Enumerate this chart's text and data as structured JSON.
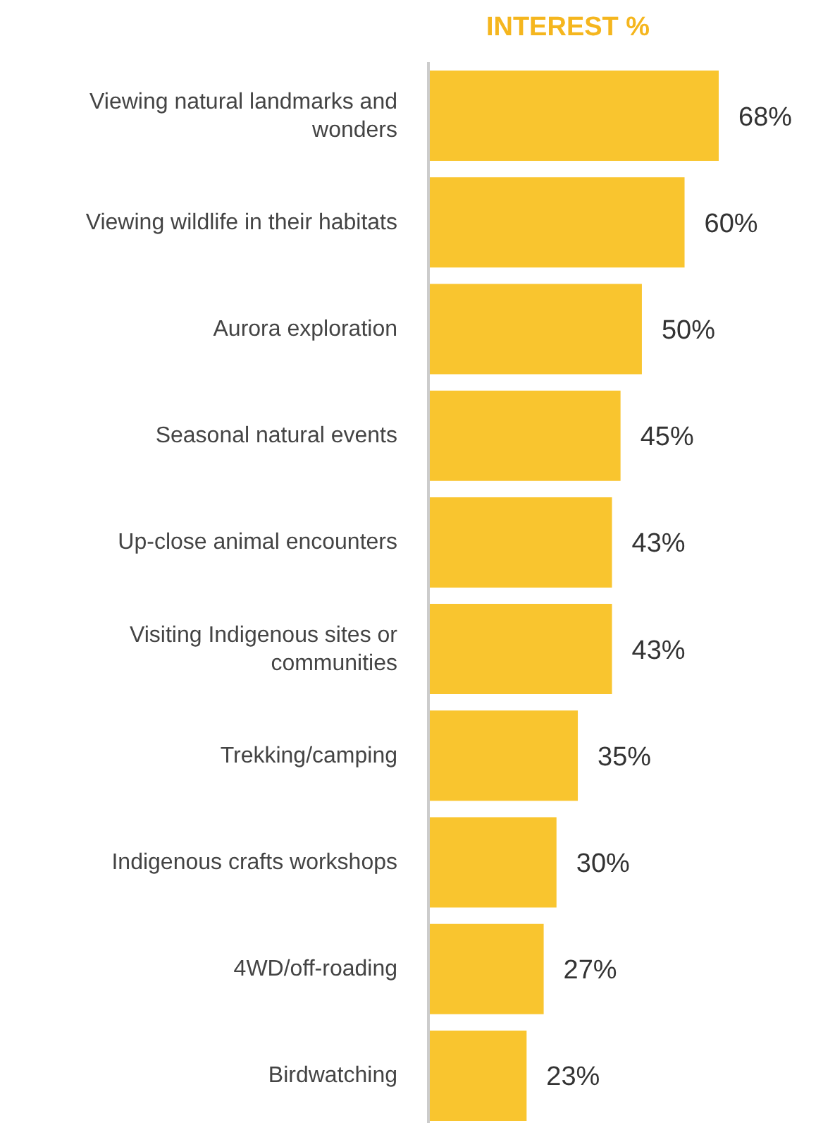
{
  "chart_data": {
    "type": "bar",
    "orientation": "horizontal",
    "title": "INTEREST %",
    "categories": [
      "Viewing natural landmarks and wonders",
      "Viewing wildlife in their habitats",
      "Aurora exploration",
      "Seasonal natural events",
      "Up-close animal encounters",
      "Visiting Indigenous sites or communities",
      "Trekking/camping",
      "Indigenous crafts workshops",
      "4WD/off-roading",
      "Birdwatching"
    ],
    "values": [
      68,
      60,
      50,
      45,
      43,
      43,
      35,
      30,
      27,
      23
    ],
    "value_labels": [
      "68%",
      "60%",
      "50%",
      "45%",
      "43%",
      "43%",
      "35%",
      "30%",
      "27%",
      "23%"
    ],
    "color": "#f9c52f",
    "grid": false,
    "legend": false
  }
}
